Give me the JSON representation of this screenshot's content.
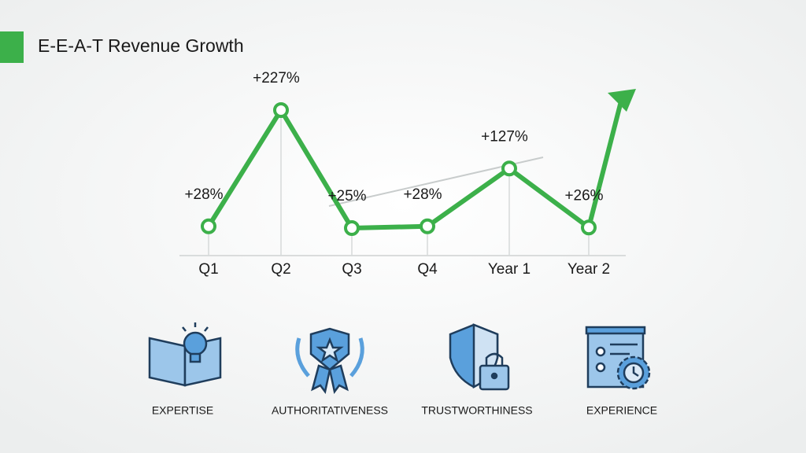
{
  "chart_data": {
    "type": "line",
    "title": "E-E-A-T Revenue Growth",
    "categories": [
      "Q1",
      "Q2",
      "Q3",
      "Q4",
      "Year 1",
      "Year 2"
    ],
    "values": [
      28,
      227,
      25,
      28,
      127,
      26
    ],
    "value_labels": [
      "+28%",
      "+227%",
      "+25%",
      "+28%",
      "+127%",
      "+26%"
    ],
    "color": "#3cb04a"
  },
  "pillars": [
    "EXPERTISE",
    "AUTHORITATIVENESS",
    "TRUSTWORTHINESS",
    "EXPERIENCE"
  ]
}
